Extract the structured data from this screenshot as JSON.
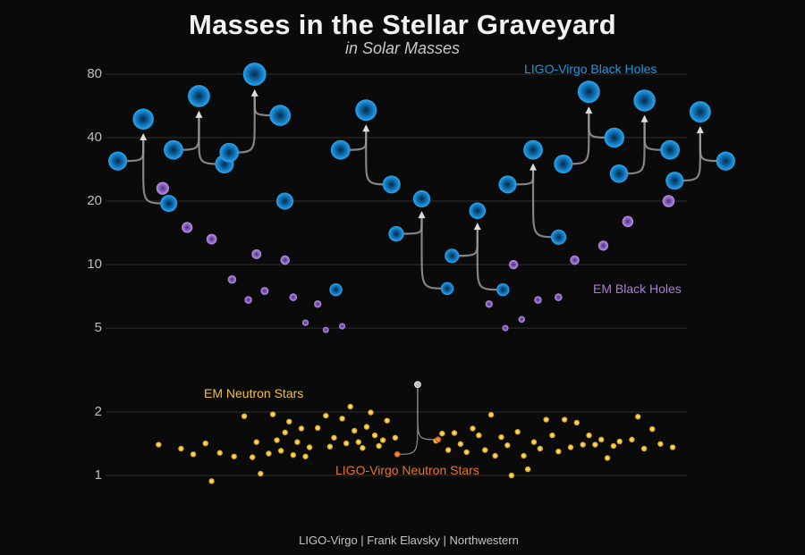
{
  "title": "Masses in the Stellar Graveyard",
  "subtitle": "in Solar Masses",
  "credit": "LIGO-Virgo | Frank Elavsky | Northwestern",
  "colors": {
    "background": "#0a0a0a",
    "ligo_black_holes": "#1a9ae0",
    "em_black_holes": "#a77fd4",
    "em_neutron_stars": "#f1c232",
    "ligo_neutron_stars": "#e5762a",
    "merger_arrow": "#9a9a9a",
    "grid": "#2e2e2e"
  },
  "chart_data": {
    "type": "scatter",
    "yscale": "log",
    "ylim": [
      0.75,
      100
    ],
    "yticks": [
      1,
      2,
      5,
      10,
      20,
      40,
      80
    ],
    "grid": true,
    "series_labels": [
      {
        "name": "LIGO-Virgo Black Holes",
        "color": "#1a9ae0",
        "anchor": "top-right"
      },
      {
        "name": "EM Black Holes",
        "color": "#a77fd4",
        "anchor": "right"
      },
      {
        "name": "EM Neutron Stars",
        "color": "#f1c232",
        "anchor": "bottom-left"
      },
      {
        "name": "LIGO-Virgo Neutron Stars",
        "color": "#e5762a",
        "anchor": "bottom-center"
      }
    ],
    "ligo_mergers": [
      {
        "m1": 31,
        "m2": 19.5,
        "final": 49
      },
      {
        "m1": 35,
        "m2": 30,
        "final": 63
      },
      {
        "m1": 34,
        "m2": 51,
        "final": 80
      },
      {
        "m1": 20,
        "m2": 7.6,
        "final": null
      },
      {
        "m1": 35,
        "m2": 24,
        "final": 54
      },
      {
        "m1": 14,
        "m2": 7.7,
        "final": 20.5
      },
      {
        "m1": 11,
        "m2": 7.6,
        "final": 18
      },
      {
        "m1": 24,
        "m2": 13.5,
        "final": 35
      },
      {
        "m1": 30,
        "m2": 40,
        "final": 66
      },
      {
        "m1": 27,
        "m2": 35,
        "final": 60
      },
      {
        "m1": 25,
        "m2": 31,
        "final": 53
      }
    ],
    "em_black_holes": [
      {
        "x": 28,
        "y": 23
      },
      {
        "x": 40,
        "y": 15
      },
      {
        "x": 52,
        "y": 13.2
      },
      {
        "x": 62,
        "y": 8.5
      },
      {
        "x": 70,
        "y": 6.8
      },
      {
        "x": 74,
        "y": 11.2
      },
      {
        "x": 78,
        "y": 7.5
      },
      {
        "x": 88,
        "y": 10.5
      },
      {
        "x": 92,
        "y": 7.0
      },
      {
        "x": 98,
        "y": 5.3
      },
      {
        "x": 104,
        "y": 6.5
      },
      {
        "x": 108,
        "y": 4.9
      },
      {
        "x": 116,
        "y": 5.1
      },
      {
        "x": 188,
        "y": 6.5
      },
      {
        "x": 196,
        "y": 5.0
      },
      {
        "x": 200,
        "y": 10.0
      },
      {
        "x": 204,
        "y": 5.5
      },
      {
        "x": 212,
        "y": 6.8
      },
      {
        "x": 222,
        "y": 7.0
      },
      {
        "x": 230,
        "y": 10.5
      },
      {
        "x": 244,
        "y": 12.3
      },
      {
        "x": 256,
        "y": 16.0
      },
      {
        "x": 276,
        "y": 20.0
      }
    ],
    "em_neutron_stars": [
      {
        "x": 26,
        "y": 1.4
      },
      {
        "x": 37,
        "y": 1.34
      },
      {
        "x": 43,
        "y": 1.26
      },
      {
        "x": 49,
        "y": 1.42
      },
      {
        "x": 52,
        "y": 0.94
      },
      {
        "x": 56,
        "y": 1.28
      },
      {
        "x": 63,
        "y": 1.23
      },
      {
        "x": 68,
        "y": 1.91
      },
      {
        "x": 72,
        "y": 1.22
      },
      {
        "x": 74,
        "y": 1.44
      },
      {
        "x": 76,
        "y": 1.02
      },
      {
        "x": 80,
        "y": 1.27
      },
      {
        "x": 82,
        "y": 1.95
      },
      {
        "x": 84,
        "y": 1.47
      },
      {
        "x": 86,
        "y": 1.31
      },
      {
        "x": 88,
        "y": 1.6
      },
      {
        "x": 90,
        "y": 1.8
      },
      {
        "x": 92,
        "y": 1.25
      },
      {
        "x": 94,
        "y": 1.44
      },
      {
        "x": 96,
        "y": 1.67
      },
      {
        "x": 98,
        "y": 1.23
      },
      {
        "x": 100,
        "y": 1.36
      },
      {
        "x": 104,
        "y": 1.68
      },
      {
        "x": 108,
        "y": 1.92
      },
      {
        "x": 110,
        "y": 1.37
      },
      {
        "x": 112,
        "y": 1.51
      },
      {
        "x": 116,
        "y": 1.86
      },
      {
        "x": 118,
        "y": 1.42
      },
      {
        "x": 120,
        "y": 2.12
      },
      {
        "x": 122,
        "y": 1.63
      },
      {
        "x": 124,
        "y": 1.44
      },
      {
        "x": 126,
        "y": 1.35
      },
      {
        "x": 128,
        "y": 1.7
      },
      {
        "x": 130,
        "y": 1.99
      },
      {
        "x": 132,
        "y": 1.55
      },
      {
        "x": 134,
        "y": 1.38
      },
      {
        "x": 136,
        "y": 1.47
      },
      {
        "x": 138,
        "y": 1.82
      },
      {
        "x": 142,
        "y": 1.51
      },
      {
        "x": 162,
        "y": 1.46
      },
      {
        "x": 165,
        "y": 1.58
      },
      {
        "x": 168,
        "y": 1.32
      },
      {
        "x": 171,
        "y": 1.59
      },
      {
        "x": 174,
        "y": 1.41
      },
      {
        "x": 177,
        "y": 1.29
      },
      {
        "x": 180,
        "y": 1.67
      },
      {
        "x": 183,
        "y": 1.55
      },
      {
        "x": 186,
        "y": 1.32
      },
      {
        "x": 189,
        "y": 1.94
      },
      {
        "x": 191,
        "y": 1.24
      },
      {
        "x": 194,
        "y": 1.52
      },
      {
        "x": 197,
        "y": 1.39
      },
      {
        "x": 199,
        "y": 1.0
      },
      {
        "x": 202,
        "y": 1.61
      },
      {
        "x": 205,
        "y": 1.24
      },
      {
        "x": 207,
        "y": 1.07
      },
      {
        "x": 210,
        "y": 1.44
      },
      {
        "x": 213,
        "y": 1.34
      },
      {
        "x": 216,
        "y": 1.84
      },
      {
        "x": 219,
        "y": 1.55
      },
      {
        "x": 222,
        "y": 1.3
      },
      {
        "x": 225,
        "y": 1.84
      },
      {
        "x": 228,
        "y": 1.36
      },
      {
        "x": 231,
        "y": 1.78
      },
      {
        "x": 234,
        "y": 1.4
      },
      {
        "x": 237,
        "y": 1.55
      },
      {
        "x": 240,
        "y": 1.4
      },
      {
        "x": 243,
        "y": 1.48
      },
      {
        "x": 246,
        "y": 1.21
      },
      {
        "x": 249,
        "y": 1.38
      },
      {
        "x": 252,
        "y": 1.45
      },
      {
        "x": 258,
        "y": 1.48
      },
      {
        "x": 261,
        "y": 1.9
      },
      {
        "x": 264,
        "y": 1.34
      },
      {
        "x": 268,
        "y": 1.66
      },
      {
        "x": 272,
        "y": 1.41
      },
      {
        "x": 278,
        "y": 1.36
      }
    ],
    "ligo_neutron_star_merger": {
      "m1": 1.26,
      "m2": 1.48,
      "final": 2.7
    }
  }
}
